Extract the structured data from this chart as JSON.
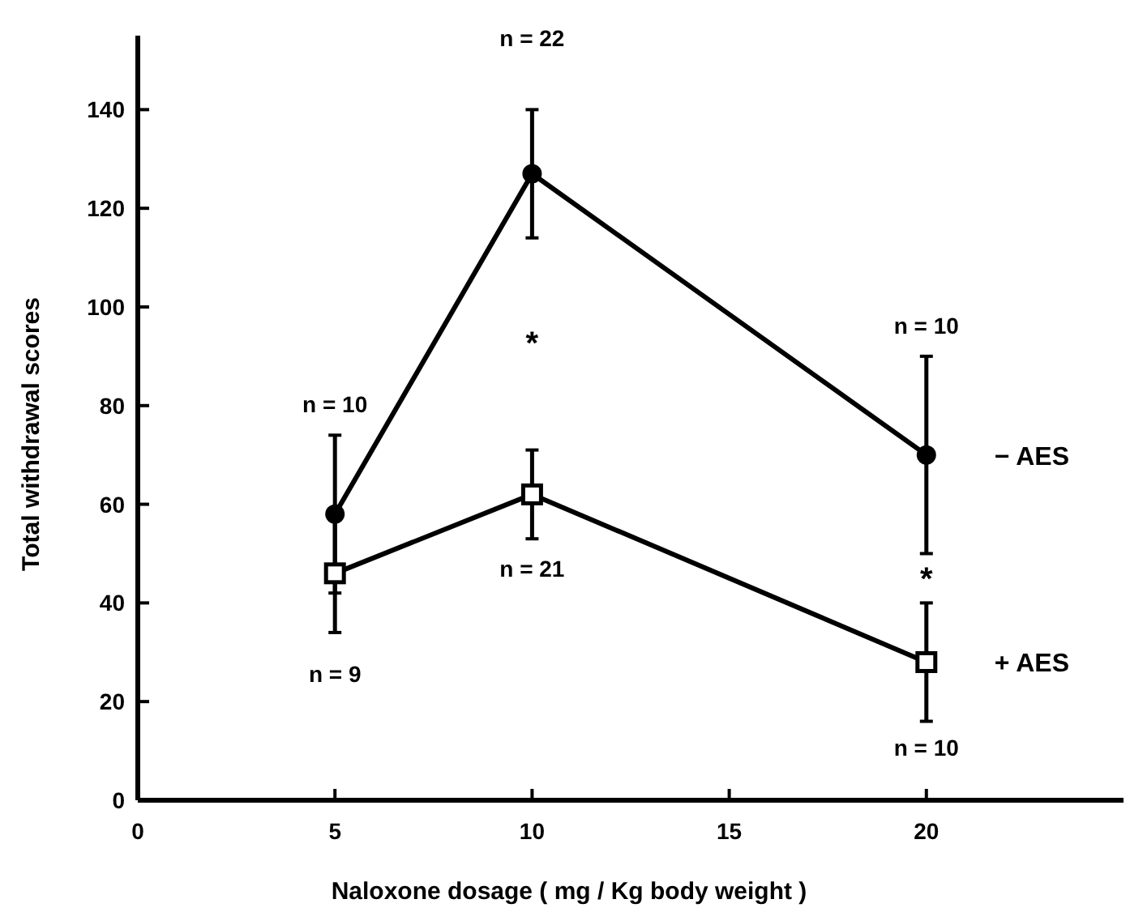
{
  "chart_data": {
    "type": "line",
    "xlabel": "Naloxone dosage ( mg / Kg body weight )",
    "ylabel": "Total withdrawal scores",
    "xlim": [
      0,
      25
    ],
    "xticks": [
      0,
      5,
      10,
      15,
      20
    ],
    "ylim": [
      0,
      155
    ],
    "yticks": [
      0,
      20,
      40,
      60,
      80,
      100,
      120,
      140
    ],
    "grid": false,
    "x": [
      5,
      10,
      20
    ],
    "series": [
      {
        "name": "− AES",
        "color": "#000000",
        "marker": "circle",
        "values": [
          58,
          127,
          70
        ],
        "errors": [
          16,
          13,
          20
        ]
      },
      {
        "name": "+ AES",
        "color": "#000000",
        "marker": "square",
        "values": [
          46,
          62,
          28
        ],
        "errors": [
          12,
          9,
          12
        ]
      }
    ],
    "annotations": [
      "n = 10",
      "n = 9",
      "n = 22",
      "*",
      "n = 21",
      "n = 10",
      "*",
      "n = 10"
    ]
  }
}
